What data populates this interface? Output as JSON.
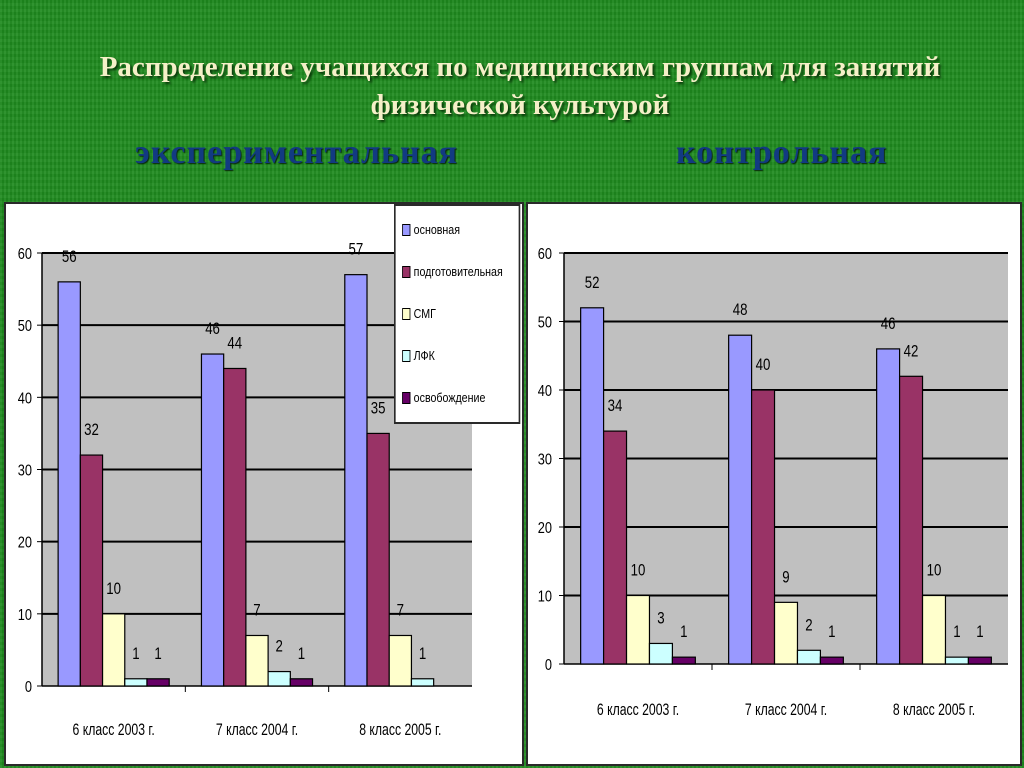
{
  "title": "Распределение учащихся по медицинским группам для занятий физической культурой",
  "subtitle_left": "экспериментальная",
  "subtitle_right": "контрольная",
  "colors": {
    "основная": "#9999ff",
    "подготовительная": "#993366",
    "СМГ": "#ffffcc",
    "ЛФК": "#ccffff",
    "освобождение": "#660066",
    "plot_bg": "#c0c0c0",
    "title": "#f5f0c8",
    "subtitle": "#123a82"
  },
  "legend": [
    "основная",
    "подготовительная",
    "СМГ",
    "ЛФК",
    "освобождение"
  ],
  "chart_data": [
    {
      "type": "bar",
      "title": "экспериментальная",
      "categories": [
        "6 класс 2003 г.",
        "7 класс 2004 г.",
        "8 класс 2005 г."
      ],
      "series": [
        {
          "name": "основная",
          "values": [
            56,
            46,
            57
          ]
        },
        {
          "name": "подготовительная",
          "values": [
            32,
            44,
            35
          ]
        },
        {
          "name": "СМГ",
          "values": [
            10,
            7,
            7
          ]
        },
        {
          "name": "ЛФК",
          "values": [
            1,
            2,
            1
          ]
        },
        {
          "name": "освобождение",
          "values": [
            1,
            1,
            0
          ]
        }
      ],
      "data_labels": [
        [
          "56",
          "32",
          "10",
          "1",
          "1"
        ],
        [
          "46",
          "44",
          "7",
          "2",
          "1"
        ],
        [
          "57",
          "35",
          "7",
          "1",
          ""
        ]
      ],
      "ylim": [
        0,
        60
      ],
      "yticks": [
        0,
        10,
        20,
        30,
        40,
        50,
        60
      ],
      "grid": true,
      "legend_position": "top-right"
    },
    {
      "type": "bar",
      "title": "контрольная",
      "categories": [
        "6 класс 2003 г.",
        "7 класс 2004 г.",
        "8 класс 2005 г."
      ],
      "series": [
        {
          "name": "основная",
          "values": [
            52,
            48,
            46
          ]
        },
        {
          "name": "подготовительная",
          "values": [
            34,
            40,
            42
          ]
        },
        {
          "name": "СМГ",
          "values": [
            10,
            9,
            10
          ]
        },
        {
          "name": "ЛФК",
          "values": [
            3,
            2,
            1
          ]
        },
        {
          "name": "освобождение",
          "values": [
            1,
            1,
            1
          ]
        }
      ],
      "data_labels": [
        [
          "52",
          "34",
          "10",
          "3",
          "1"
        ],
        [
          "48",
          "40",
          "9",
          "2",
          "1"
        ],
        [
          "46",
          "42",
          "10",
          "1",
          "1"
        ]
      ],
      "ylim": [
        0,
        60
      ],
      "yticks": [
        0,
        10,
        20,
        30,
        40,
        50,
        60
      ],
      "grid": true,
      "legend_position": "none"
    }
  ]
}
